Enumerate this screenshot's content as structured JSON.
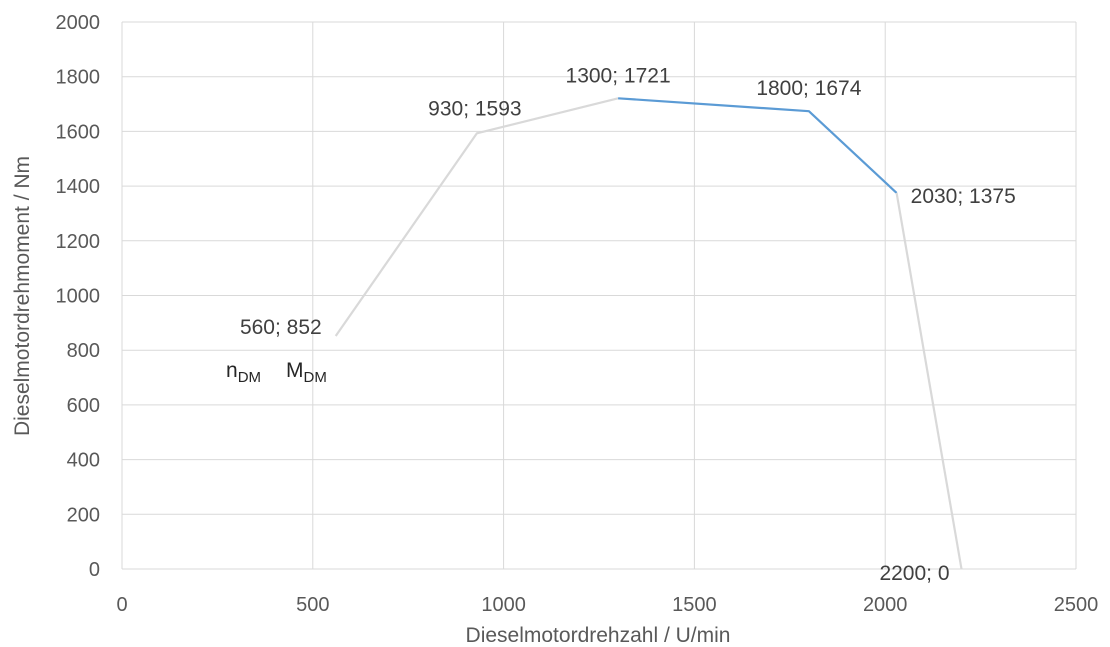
{
  "chart_data": {
    "type": "line",
    "title": "",
    "xlabel": "Dieselmotordrehzahl  / U/min",
    "ylabel": "Dieselmotordrehmoment / Nm",
    "xlim": [
      0,
      2500
    ],
    "ylim": [
      0,
      2000
    ],
    "x_ticks": [
      "0",
      "500",
      "1000",
      "1500",
      "2000",
      "2500"
    ],
    "y_ticks": [
      "0",
      "200",
      "400",
      "600",
      "800",
      "1000",
      "1200",
      "1400",
      "1600",
      "1800",
      "2000"
    ],
    "grid": true,
    "series": [
      {
        "color": "#d9d9d9",
        "points": [
          [
            560,
            852
          ],
          [
            930,
            1593
          ],
          [
            1300,
            1721
          ]
        ]
      },
      {
        "color": "#5b9bd5",
        "points": [
          [
            1300,
            1721
          ],
          [
            1800,
            1674
          ],
          [
            2030,
            1375
          ]
        ]
      },
      {
        "color": "#d9d9d9",
        "points": [
          [
            2030,
            1375
          ],
          [
            2200,
            0
          ]
        ]
      }
    ],
    "data_labels": [
      {
        "x": 560,
        "y": 852,
        "text": "560; 852"
      },
      {
        "x": 930,
        "y": 1593,
        "text": "930; 1593"
      },
      {
        "x": 1300,
        "y": 1721,
        "text": "1300; 1721"
      },
      {
        "x": 1800,
        "y": 1674,
        "text": "1800; 1674"
      },
      {
        "x": 2030,
        "y": 1375,
        "text": "2030; 1375"
      },
      {
        "x": 2200,
        "y": 0,
        "text": "2200; 0"
      }
    ],
    "annotation": {
      "items": [
        {
          "symbol": "n",
          "subscript": "DM"
        },
        {
          "symbol": "M",
          "subscript": "DM"
        }
      ]
    }
  }
}
